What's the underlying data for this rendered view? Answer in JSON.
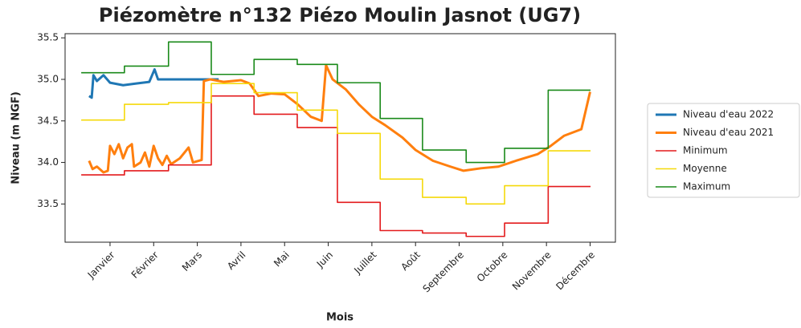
{
  "chart_data": {
    "type": "line",
    "title": "Piézomètre n°132 Piézo Moulin Jasnot (UG7)",
    "xlabel": "Mois",
    "ylabel": "Niveau (m NGF)",
    "xlim": [
      -0.03,
      12.58
    ],
    "ylim": [
      33.04,
      35.55
    ],
    "xticks": [
      {
        "value": 1,
        "label": "Janvier"
      },
      {
        "value": 2,
        "label": "Février"
      },
      {
        "value": 3,
        "label": "Mars"
      },
      {
        "value": 4,
        "label": "Avril"
      },
      {
        "value": 5,
        "label": "Mai"
      },
      {
        "value": 6,
        "label": "Juin"
      },
      {
        "value": 7,
        "label": "Juillet"
      },
      {
        "value": 8,
        "label": "Août"
      },
      {
        "value": 9,
        "label": "Septembre"
      },
      {
        "value": 10,
        "label": "Octobre"
      },
      {
        "value": 11,
        "label": "Novembre"
      },
      {
        "value": 12,
        "label": "Décembre"
      }
    ],
    "yticks": [
      33.5,
      {
        "value": 34,
        "label": "34.0"
      },
      34.5,
      {
        "value": 35,
        "label": "35.0"
      },
      35.5
    ],
    "legend": "outside-right",
    "series": [
      {
        "name": "Niveau d'eau 2022",
        "color": "#1f77b4",
        "width": 3,
        "x": [
          0.52,
          0.58,
          0.62,
          0.7,
          0.85,
          1.0,
          1.3,
          1.6,
          1.9,
          2.02,
          2.1,
          2.4,
          3.0,
          3.49
        ],
        "values": [
          34.8,
          34.78,
          35.05,
          34.98,
          35.05,
          34.96,
          34.93,
          34.95,
          34.97,
          35.12,
          35.0,
          35.0,
          35.0,
          35.0
        ]
      },
      {
        "name": "Niveau d'eau 2021",
        "color": "#ff7f0e",
        "width": 3,
        "x": [
          0.52,
          0.6,
          0.7,
          0.85,
          0.95,
          1.0,
          1.1,
          1.2,
          1.3,
          1.4,
          1.5,
          1.55,
          1.7,
          1.8,
          1.9,
          2.0,
          2.1,
          2.2,
          2.3,
          2.4,
          2.6,
          2.8,
          2.9,
          3.1,
          3.15,
          3.3,
          3.6,
          4.0,
          4.2,
          4.4,
          4.7,
          5.0,
          5.3,
          5.6,
          5.85,
          5.95,
          6.1,
          6.4,
          6.7,
          7.0,
          7.3,
          7.7,
          8.0,
          8.4,
          8.8,
          9.1,
          9.5,
          9.9,
          10.3,
          10.8,
          11.1,
          11.4,
          11.8,
          12.0
        ],
        "values": [
          34.02,
          33.92,
          33.95,
          33.88,
          33.9,
          34.2,
          34.1,
          34.22,
          34.05,
          34.18,
          34.22,
          33.95,
          34.0,
          34.12,
          33.95,
          34.2,
          34.05,
          33.97,
          34.08,
          33.98,
          34.05,
          34.18,
          34.0,
          34.03,
          34.98,
          35.0,
          34.97,
          34.99,
          34.95,
          34.8,
          34.83,
          34.82,
          34.7,
          34.55,
          34.5,
          35.17,
          35.0,
          34.88,
          34.7,
          34.55,
          34.45,
          34.3,
          34.15,
          34.02,
          33.95,
          33.9,
          33.93,
          33.95,
          34.02,
          34.1,
          34.2,
          34.32,
          34.4,
          34.85
        ]
      },
      {
        "name": "Minimum",
        "color": "#e31a1c",
        "width": 1.6,
        "step": true,
        "x": [
          0.34,
          1.33,
          2.34,
          3.32,
          4.3,
          5.29,
          6.21,
          7.19,
          8.16,
          9.16,
          10.04,
          11.04,
          12.01
        ],
        "values": [
          33.85,
          33.9,
          33.97,
          34.8,
          34.58,
          34.42,
          33.52,
          33.18,
          33.15,
          33.11,
          33.27,
          33.71,
          33.71
        ]
      },
      {
        "name": "Moyenne",
        "color": "#f5d90a",
        "width": 1.6,
        "step": true,
        "x": [
          0.34,
          1.33,
          2.34,
          3.32,
          4.3,
          5.29,
          6.21,
          7.19,
          8.16,
          9.16,
          10.04,
          11.04,
          12.01
        ],
        "values": [
          34.51,
          34.7,
          34.72,
          34.95,
          34.84,
          34.63,
          34.35,
          33.8,
          33.58,
          33.5,
          33.72,
          34.14,
          34.14
        ]
      },
      {
        "name": "Maximum",
        "color": "#1a8a1a",
        "width": 1.6,
        "step": true,
        "x": [
          0.34,
          1.33,
          2.34,
          3.32,
          4.3,
          5.29,
          6.21,
          7.19,
          8.16,
          9.16,
          10.04,
          11.04,
          12.01
        ],
        "values": [
          35.08,
          35.16,
          35.45,
          35.06,
          35.24,
          35.18,
          34.96,
          34.53,
          34.15,
          34.0,
          34.17,
          34.87,
          34.87
        ]
      }
    ]
  }
}
